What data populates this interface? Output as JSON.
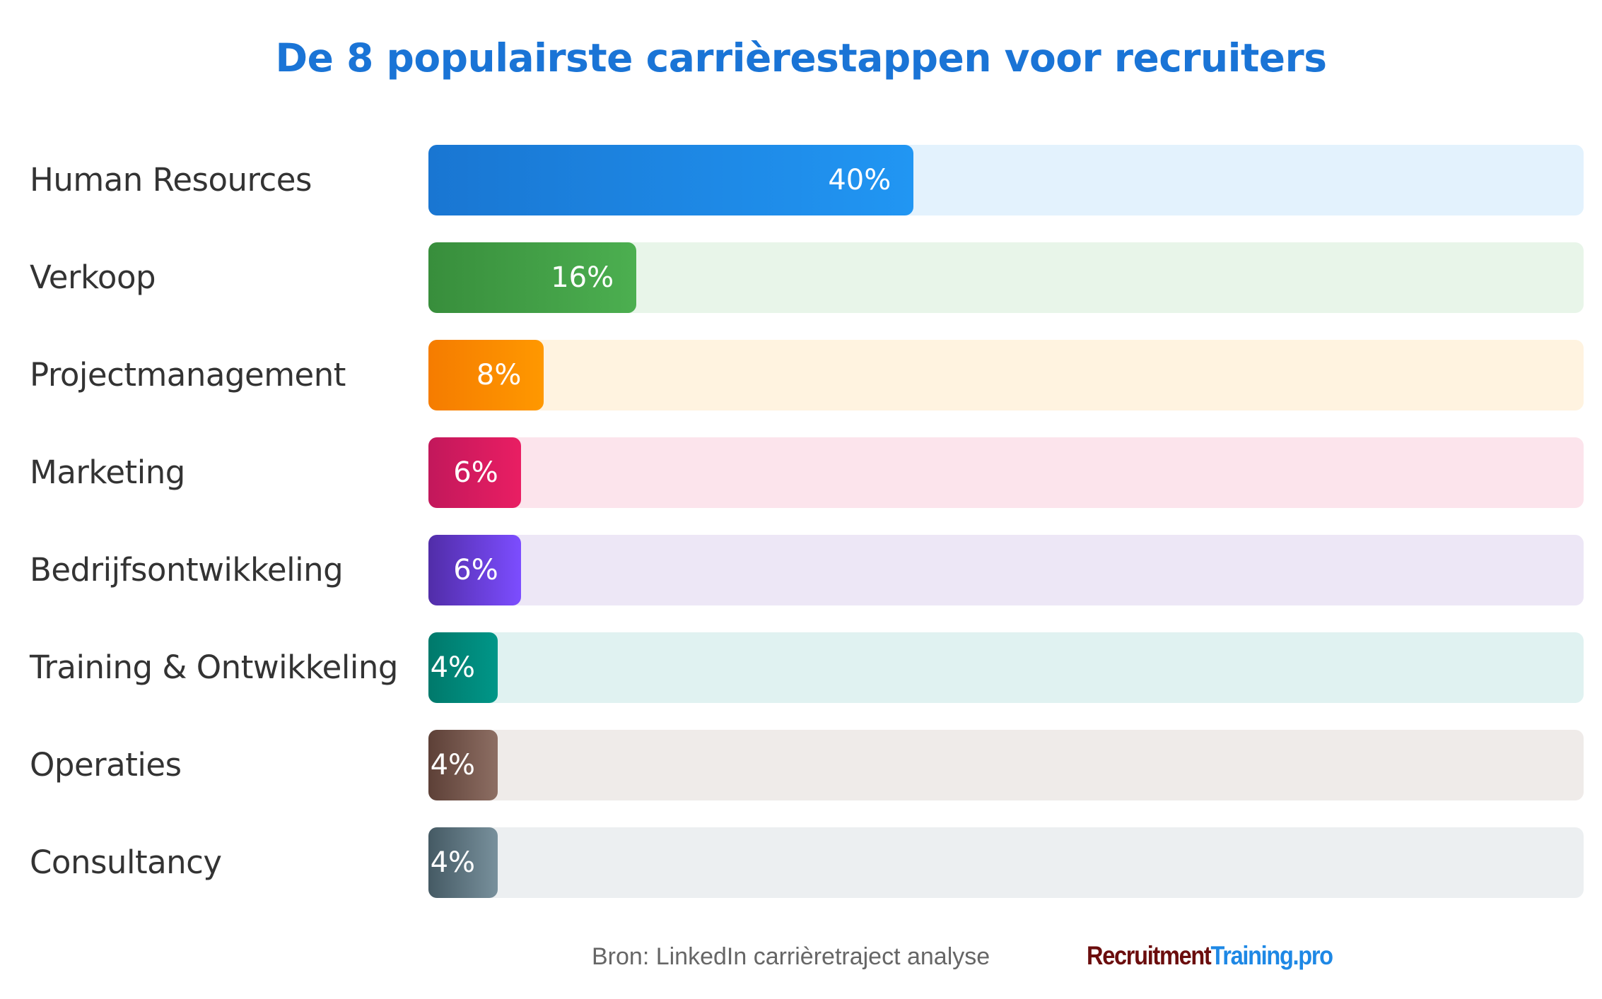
{
  "chart_data": {
    "type": "bar",
    "orientation": "horizontal",
    "title": "De 8 populairste carrièrestappen voor recruiters",
    "categories": [
      "Human Resources",
      "Verkoop",
      "Projectmanagement",
      "Marketing",
      "Bedrijfsontwikkeling",
      "Training & Ontwikkeling",
      "Operaties",
      "Consultancy"
    ],
    "values": [
      40,
      16,
      8,
      6,
      6,
      4,
      4,
      4
    ],
    "value_labels": [
      "40%",
      "16%",
      "8%",
      "6%",
      "6%",
      "4%",
      "4%",
      "4%"
    ],
    "unit": "%",
    "xlim": [
      0,
      100
    ],
    "grid": false,
    "colors": [
      {
        "from": "#1976d2",
        "to": "#2196f3",
        "track": "#e3f2fd"
      },
      {
        "from": "#388e3c",
        "to": "#4caf50",
        "track": "#e8f5e9"
      },
      {
        "from": "#f57c00",
        "to": "#ff9800",
        "track": "#fff3e0"
      },
      {
        "from": "#c2185b",
        "to": "#e91e63",
        "track": "#fce4ec"
      },
      {
        "from": "#512da8",
        "to": "#7c4dff",
        "track": "#ede7f6"
      },
      {
        "from": "#00796b",
        "to": "#009688",
        "track": "#e0f2f1"
      },
      {
        "from": "#5d4037",
        "to": "#8d6e63",
        "track": "#efebe9"
      },
      {
        "from": "#455a64",
        "to": "#78909c",
        "track": "#eceff1"
      }
    ]
  },
  "footer": {
    "source": "Bron: LinkedIn carrièretraject analyse",
    "logo_part1": "Recruitment",
    "logo_part2": "Training.pro"
  }
}
